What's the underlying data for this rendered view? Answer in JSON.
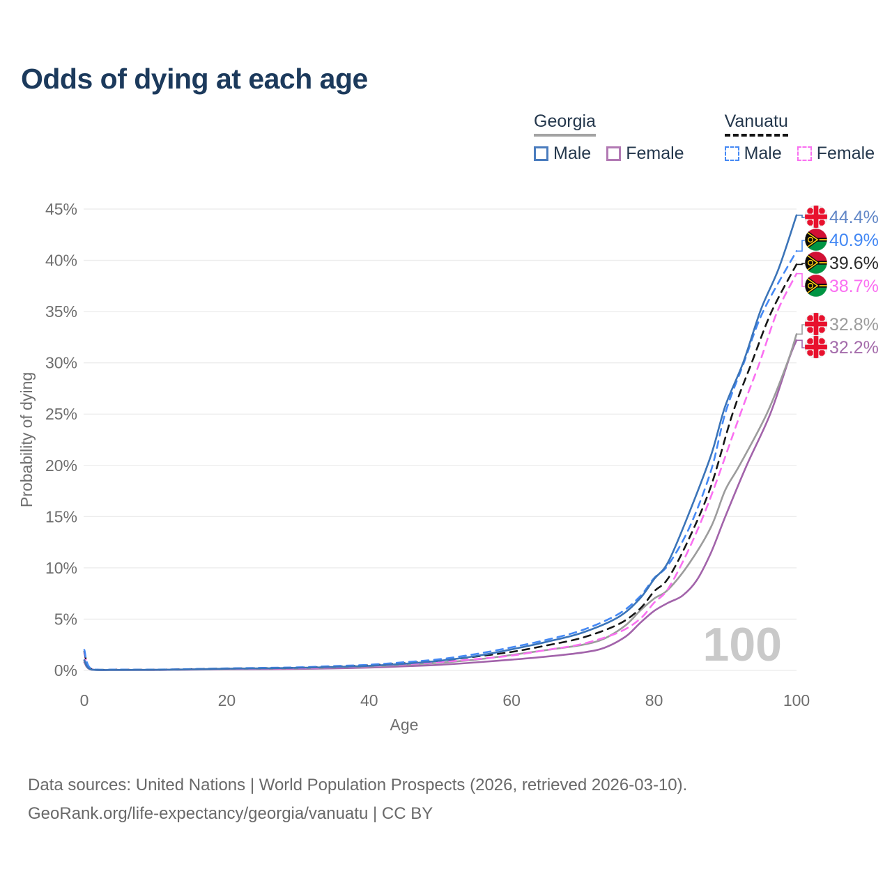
{
  "title": "Odds of dying at each age",
  "legend": {
    "groups": [
      {
        "name": "Georgia",
        "line_style": "solid",
        "underline_color": "#a3a3a3",
        "items": [
          {
            "label": "Male",
            "color": "#4a7cbe"
          },
          {
            "label": "Female",
            "color": "#b279b4"
          }
        ]
      },
      {
        "name": "Vanuatu",
        "line_style": "dashed",
        "underline_color": "#141414",
        "items": [
          {
            "label": "Male",
            "color": "#4589f4"
          },
          {
            "label": "Female",
            "color": "#fa70f1"
          }
        ]
      }
    ]
  },
  "axes": {
    "x_label": "Age",
    "y_label": "Probability of dying",
    "x_ticks": [
      0,
      20,
      40,
      60,
      80,
      100
    ],
    "y_ticks": [
      "0%",
      "5%",
      "10%",
      "15%",
      "20%",
      "25%",
      "30%",
      "35%",
      "40%",
      "45%"
    ]
  },
  "hover_age": "100",
  "end_labels": [
    {
      "series": "georgia-male",
      "flag": "georgia-flag-icon",
      "value": "44.4%",
      "text_color": "#6287c7"
    },
    {
      "series": "vanuatu-male",
      "flag": "vanuatu-flag-icon",
      "value": "40.9%",
      "text_color": "#4388f4"
    },
    {
      "series": "vanuatu-total",
      "flag": "vanuatu-flag-icon",
      "value": "39.6%",
      "text_color": "#2b2b2b"
    },
    {
      "series": "vanuatu-female",
      "flag": "vanuatu-flag-icon",
      "value": "38.7%",
      "text_color": "#fa70f1"
    },
    {
      "series": "georgia-total",
      "flag": "georgia-flag-icon",
      "value": "32.8%",
      "text_color": "#9c9c9c"
    },
    {
      "series": "georgia-female",
      "flag": "georgia-flag-icon",
      "value": "32.2%",
      "text_color": "#a46cab"
    }
  ],
  "footer": {
    "line1": "Data sources: United Nations | World Population Prospects (2026, retrieved 2026-03-10).",
    "line2": "GeoRank.org/life-expectancy/georgia/vanuatu | CC BY"
  },
  "colors": {
    "title": "#1c3a5c",
    "gridline": "#ebebeb",
    "axis_text": "#6e6e6e",
    "hover_age_text": "#c9c9c9",
    "flag_georgia_red": "#e8112d",
    "flag_vanuatu_red": "#d21034",
    "flag_vanuatu_green": "#009543",
    "flag_vanuatu_yellow": "#fdce12"
  },
  "chart_data": {
    "type": "line",
    "title": "Odds of dying at each age",
    "xlabel": "Age",
    "ylabel": "Probability of dying",
    "x_range": [
      0,
      100
    ],
    "y_range_pct": [
      0,
      45
    ],
    "grid": "horizontal-only",
    "legend_position": "top-right",
    "hovered_age": 100,
    "series": [
      {
        "key": "georgia-male",
        "name": "Georgia Male",
        "style": "solid",
        "color": "#3b74b8",
        "end_value_pct": 44.4,
        "points": [
          [
            0,
            1.0
          ],
          [
            1,
            0.08
          ],
          [
            5,
            0.05
          ],
          [
            10,
            0.06
          ],
          [
            15,
            0.1
          ],
          [
            20,
            0.16
          ],
          [
            25,
            0.2
          ],
          [
            30,
            0.25
          ],
          [
            35,
            0.33
          ],
          [
            40,
            0.45
          ],
          [
            45,
            0.65
          ],
          [
            50,
            0.95
          ],
          [
            55,
            1.4
          ],
          [
            60,
            2.05
          ],
          [
            65,
            2.8
          ],
          [
            70,
            3.7
          ],
          [
            75,
            5.2
          ],
          [
            78,
            7.0
          ],
          [
            80,
            8.9
          ],
          [
            82,
            10.6
          ],
          [
            85,
            15.5
          ],
          [
            88,
            21.0
          ],
          [
            90,
            25.8
          ],
          [
            92.5,
            30.0
          ],
          [
            95,
            35.2
          ],
          [
            97.5,
            39.2
          ],
          [
            100,
            44.4
          ]
        ]
      },
      {
        "key": "georgia-female",
        "name": "Georgia Female",
        "style": "solid",
        "color": "#a263aa",
        "end_value_pct": 32.2,
        "points": [
          [
            0,
            0.8
          ],
          [
            1,
            0.07
          ],
          [
            5,
            0.04
          ],
          [
            10,
            0.04
          ],
          [
            15,
            0.07
          ],
          [
            20,
            0.1
          ],
          [
            25,
            0.12
          ],
          [
            30,
            0.15
          ],
          [
            35,
            0.2
          ],
          [
            40,
            0.28
          ],
          [
            45,
            0.4
          ],
          [
            50,
            0.55
          ],
          [
            55,
            0.78
          ],
          [
            60,
            1.05
          ],
          [
            65,
            1.35
          ],
          [
            70,
            1.75
          ],
          [
            73,
            2.2
          ],
          [
            76,
            3.3
          ],
          [
            78,
            4.6
          ],
          [
            80,
            5.8
          ],
          [
            82,
            6.6
          ],
          [
            84,
            7.3
          ],
          [
            86,
            8.8
          ],
          [
            88,
            11.5
          ],
          [
            90,
            15.0
          ],
          [
            93,
            20.0
          ],
          [
            96.3,
            25.0
          ],
          [
            99,
            30.5
          ],
          [
            100,
            32.2
          ]
        ]
      },
      {
        "key": "georgia-total",
        "name": "Georgia",
        "style": "solid",
        "color": "#9c9c9c",
        "end_value_pct": 32.8,
        "points": [
          [
            0,
            0.95
          ],
          [
            1,
            0.08
          ],
          [
            5,
            0.05
          ],
          [
            10,
            0.05
          ],
          [
            15,
            0.09
          ],
          [
            20,
            0.13
          ],
          [
            25,
            0.17
          ],
          [
            30,
            0.2
          ],
          [
            35,
            0.28
          ],
          [
            40,
            0.38
          ],
          [
            45,
            0.55
          ],
          [
            50,
            0.75
          ],
          [
            55,
            1.05
          ],
          [
            60,
            1.5
          ],
          [
            65,
            2.0
          ],
          [
            70,
            2.5
          ],
          [
            73,
            3.1
          ],
          [
            76,
            4.4
          ],
          [
            78,
            5.8
          ],
          [
            80,
            7.0
          ],
          [
            82,
            7.9
          ],
          [
            85,
            10.5
          ],
          [
            88,
            14.0
          ],
          [
            90,
            17.6
          ],
          [
            92,
            20.0
          ],
          [
            95.8,
            25.0
          ],
          [
            98.7,
            30.0
          ],
          [
            100,
            32.8
          ]
        ]
      },
      {
        "key": "vanuatu-male",
        "name": "Vanuatu Male",
        "style": "dashed",
        "color": "#4589f4",
        "end_value_pct": 40.9,
        "points": [
          [
            0,
            2.0
          ],
          [
            1,
            0.15
          ],
          [
            5,
            0.08
          ],
          [
            10,
            0.08
          ],
          [
            15,
            0.13
          ],
          [
            20,
            0.2
          ],
          [
            25,
            0.25
          ],
          [
            30,
            0.3
          ],
          [
            35,
            0.42
          ],
          [
            40,
            0.55
          ],
          [
            45,
            0.8
          ],
          [
            50,
            1.1
          ],
          [
            55,
            1.6
          ],
          [
            60,
            2.25
          ],
          [
            65,
            3.0
          ],
          [
            70,
            3.95
          ],
          [
            75,
            5.5
          ],
          [
            78,
            7.2
          ],
          [
            80,
            9.0
          ],
          [
            82,
            10.3
          ],
          [
            85,
            14.0
          ],
          [
            88,
            19.5
          ],
          [
            90,
            25.1
          ],
          [
            92.6,
            30.0
          ],
          [
            95.3,
            35.0
          ],
          [
            100,
            40.9
          ]
        ]
      },
      {
        "key": "vanuatu-female",
        "name": "Vanuatu Female",
        "style": "dashed",
        "color": "#fa70f1",
        "end_value_pct": 38.7,
        "points": [
          [
            0,
            1.7
          ],
          [
            1,
            0.12
          ],
          [
            5,
            0.06
          ],
          [
            10,
            0.06
          ],
          [
            15,
            0.11
          ],
          [
            20,
            0.15
          ],
          [
            25,
            0.18
          ],
          [
            30,
            0.21
          ],
          [
            35,
            0.3
          ],
          [
            40,
            0.42
          ],
          [
            45,
            0.6
          ],
          [
            50,
            0.82
          ],
          [
            55,
            1.1
          ],
          [
            60,
            1.45
          ],
          [
            65,
            2.0
          ],
          [
            70,
            2.6
          ],
          [
            75,
            3.7
          ],
          [
            78,
            5.0
          ],
          [
            80,
            6.6
          ],
          [
            82,
            8.0
          ],
          [
            85,
            12.0
          ],
          [
            88,
            17.0
          ],
          [
            92.1,
            25.0
          ],
          [
            94.8,
            30.0
          ],
          [
            97.3,
            35.0
          ],
          [
            100,
            38.7
          ]
        ]
      },
      {
        "key": "vanuatu-total",
        "name": "Vanuatu",
        "style": "dashed",
        "color": "#171717",
        "end_value_pct": 39.6,
        "points": [
          [
            0,
            1.85
          ],
          [
            1,
            0.13
          ],
          [
            5,
            0.07
          ],
          [
            10,
            0.07
          ],
          [
            15,
            0.12
          ],
          [
            20,
            0.18
          ],
          [
            25,
            0.22
          ],
          [
            30,
            0.26
          ],
          [
            35,
            0.36
          ],
          [
            40,
            0.5
          ],
          [
            45,
            0.7
          ],
          [
            50,
            0.95
          ],
          [
            55,
            1.35
          ],
          [
            60,
            1.8
          ],
          [
            65,
            2.45
          ],
          [
            70,
            3.2
          ],
          [
            75,
            4.5
          ],
          [
            78,
            6.0
          ],
          [
            80,
            7.7
          ],
          [
            82,
            9.0
          ],
          [
            85,
            13.0
          ],
          [
            88,
            18.0
          ],
          [
            91,
            25.0
          ],
          [
            93.7,
            30.0
          ],
          [
            96.5,
            35.0
          ],
          [
            100,
            39.6
          ]
        ]
      }
    ]
  }
}
